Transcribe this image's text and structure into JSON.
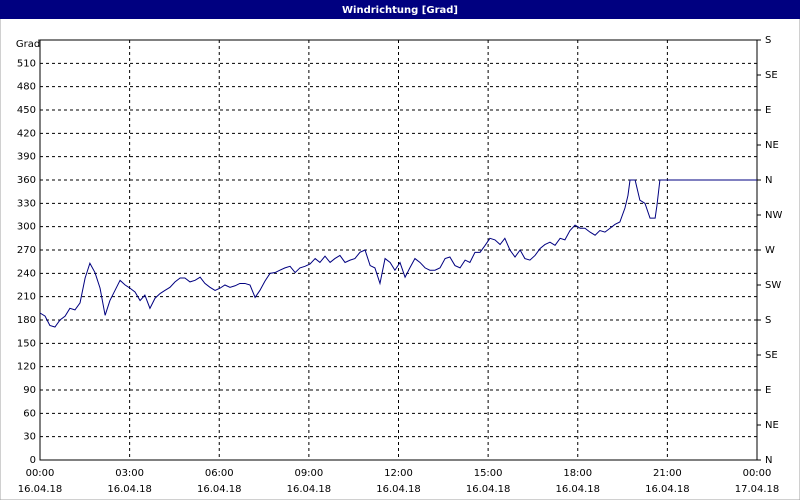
{
  "chart_data": {
    "type": "line",
    "title": "Windrichtung [Grad]",
    "y_label": "Grad",
    "x": [
      0,
      0.17,
      0.33,
      0.5,
      0.67,
      0.84,
      1.0,
      1.17,
      1.34,
      1.51,
      1.67,
      1.84,
      2.01,
      2.18,
      2.34,
      2.51,
      2.68,
      2.85,
      3.01,
      3.18,
      3.35,
      3.51,
      3.68,
      3.85,
      4.02,
      4.18,
      4.35,
      4.52,
      4.69,
      4.85,
      5.02,
      5.19,
      5.36,
      5.52,
      5.69,
      5.86,
      6.03,
      6.19,
      6.36,
      6.53,
      6.69,
      6.86,
      7.03,
      7.2,
      7.36,
      7.53,
      7.7,
      7.87,
      8.03,
      8.2,
      8.37,
      8.54,
      8.7,
      8.87,
      9.04,
      9.21,
      9.37,
      9.54,
      9.71,
      9.87,
      10.04,
      10.21,
      10.38,
      10.54,
      10.71,
      10.88,
      11.05,
      11.21,
      11.38,
      11.55,
      11.72,
      11.88,
      12.05,
      12.22,
      12.38,
      12.55,
      12.72,
      12.89,
      13.05,
      13.22,
      13.39,
      13.56,
      13.72,
      13.89,
      14.06,
      14.23,
      14.39,
      14.56,
      14.73,
      14.9,
      15.06,
      15.23,
      15.4,
      15.56,
      15.73,
      15.9,
      16.07,
      16.23,
      16.4,
      16.57,
      16.74,
      16.9,
      17.07,
      17.24,
      17.41,
      17.57,
      17.74,
      17.91,
      18.08,
      18.24,
      18.41,
      18.58,
      18.74,
      18.91,
      19.08,
      19.25,
      19.41,
      19.58,
      19.68,
      19.75,
      19.92,
      20.08,
      20.25,
      20.42,
      20.59,
      20.65,
      20.75,
      24
    ],
    "series": [
      {
        "color": "#000080",
        "values": [
          189,
          185,
          173,
          171,
          180,
          185,
          195,
          193,
          202,
          234,
          253,
          241,
          221,
          186,
          205,
          218,
          231,
          225,
          221,
          216,
          205,
          212,
          195,
          208,
          214,
          218,
          222,
          229,
          234,
          234,
          229,
          231,
          235,
          227,
          222,
          218,
          221,
          225,
          222,
          224,
          227,
          227,
          225,
          209,
          218,
          230,
          240,
          241,
          244,
          247,
          249,
          241,
          247,
          249,
          252,
          259,
          254,
          262,
          254,
          259,
          263,
          254,
          257,
          259,
          267,
          270,
          250,
          247,
          227,
          259,
          254,
          244,
          254,
          235,
          247,
          259,
          254,
          247,
          244,
          244,
          247,
          259,
          261,
          250,
          247,
          257,
          254,
          267,
          267,
          276,
          285,
          283,
          277,
          285,
          270,
          261,
          270,
          259,
          257,
          263,
          272,
          277,
          280,
          276,
          285,
          283,
          295,
          302,
          298,
          298,
          293,
          289,
          295,
          293,
          298,
          303,
          306,
          324,
          340,
          360,
          360,
          334,
          330,
          311,
          311,
          327,
          360,
          360
        ]
      }
    ],
    "xlim": [
      0,
      24
    ],
    "xticks": [
      {
        "value": 0,
        "label": "00:00",
        "sublabel": "16.04.18"
      },
      {
        "value": 3,
        "label": "03:00",
        "sublabel": "16.04.18"
      },
      {
        "value": 6,
        "label": "06:00",
        "sublabel": "16.04.18"
      },
      {
        "value": 9,
        "label": "09:00",
        "sublabel": "16.04.18"
      },
      {
        "value": 12,
        "label": "12:00",
        "sublabel": "16.04.18"
      },
      {
        "value": 15,
        "label": "15:00",
        "sublabel": "16.04.18"
      },
      {
        "value": 18,
        "label": "18:00",
        "sublabel": "16.04.18"
      },
      {
        "value": 21,
        "label": "21:00",
        "sublabel": "16.04.18"
      },
      {
        "value": 24,
        "label": "00:00",
        "sublabel": "17.04.18"
      }
    ],
    "ylim": [
      0,
      540
    ],
    "yticks": [
      0,
      30,
      60,
      90,
      120,
      150,
      180,
      210,
      240,
      270,
      300,
      330,
      360,
      390,
      420,
      450,
      480,
      510
    ],
    "y2lim": [
      0,
      540
    ],
    "y2ticks": [
      {
        "value": 0,
        "label": "N"
      },
      {
        "value": 45,
        "label": "NE"
      },
      {
        "value": 90,
        "label": "E"
      },
      {
        "value": 135,
        "label": "SE"
      },
      {
        "value": 180,
        "label": "S"
      },
      {
        "value": 225,
        "label": "SW"
      },
      {
        "value": 270,
        "label": "W"
      },
      {
        "value": 315,
        "label": "NW"
      },
      {
        "value": 360,
        "label": "N"
      },
      {
        "value": 405,
        "label": "NE"
      },
      {
        "value": 450,
        "label": "E"
      },
      {
        "value": 495,
        "label": "SE"
      },
      {
        "value": 540,
        "label": "S"
      }
    ],
    "grid": true
  }
}
